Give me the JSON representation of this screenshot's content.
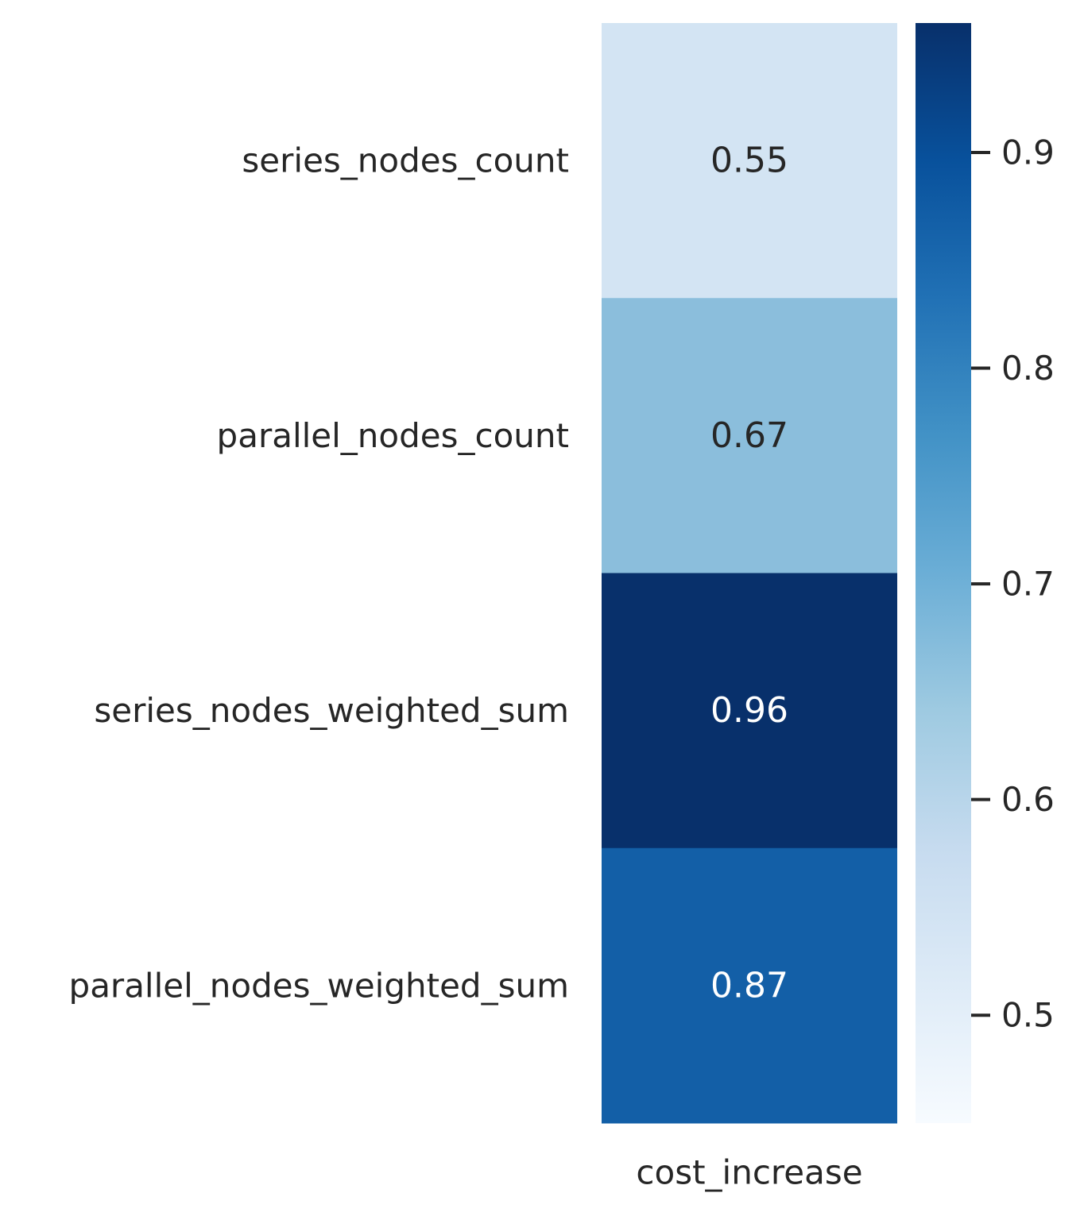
{
  "chart_data": {
    "type": "heatmap",
    "columns": [
      "cost_increase"
    ],
    "rows": [
      "series_nodes_count",
      "parallel_nodes_count",
      "series_nodes_weighted_sum",
      "parallel_nodes_weighted_sum"
    ],
    "values": [
      [
        0.55
      ],
      [
        0.67
      ],
      [
        0.96
      ],
      [
        0.87
      ]
    ],
    "value_labels": [
      "0.55",
      "0.67",
      "0.96",
      "0.87"
    ],
    "colormap": "Blues",
    "colorbar": {
      "range": [
        0.45,
        0.96
      ],
      "ticks": [
        0.5,
        0.6,
        0.7,
        0.8,
        0.9
      ],
      "tick_labels": [
        "0.5",
        "0.6",
        "0.7",
        "0.8",
        "0.9"
      ]
    },
    "cell_colors": [
      "#d3e4f3",
      "#8bbedc",
      "#08306b",
      "#135fa7"
    ],
    "annotations": true,
    "grid": false
  }
}
